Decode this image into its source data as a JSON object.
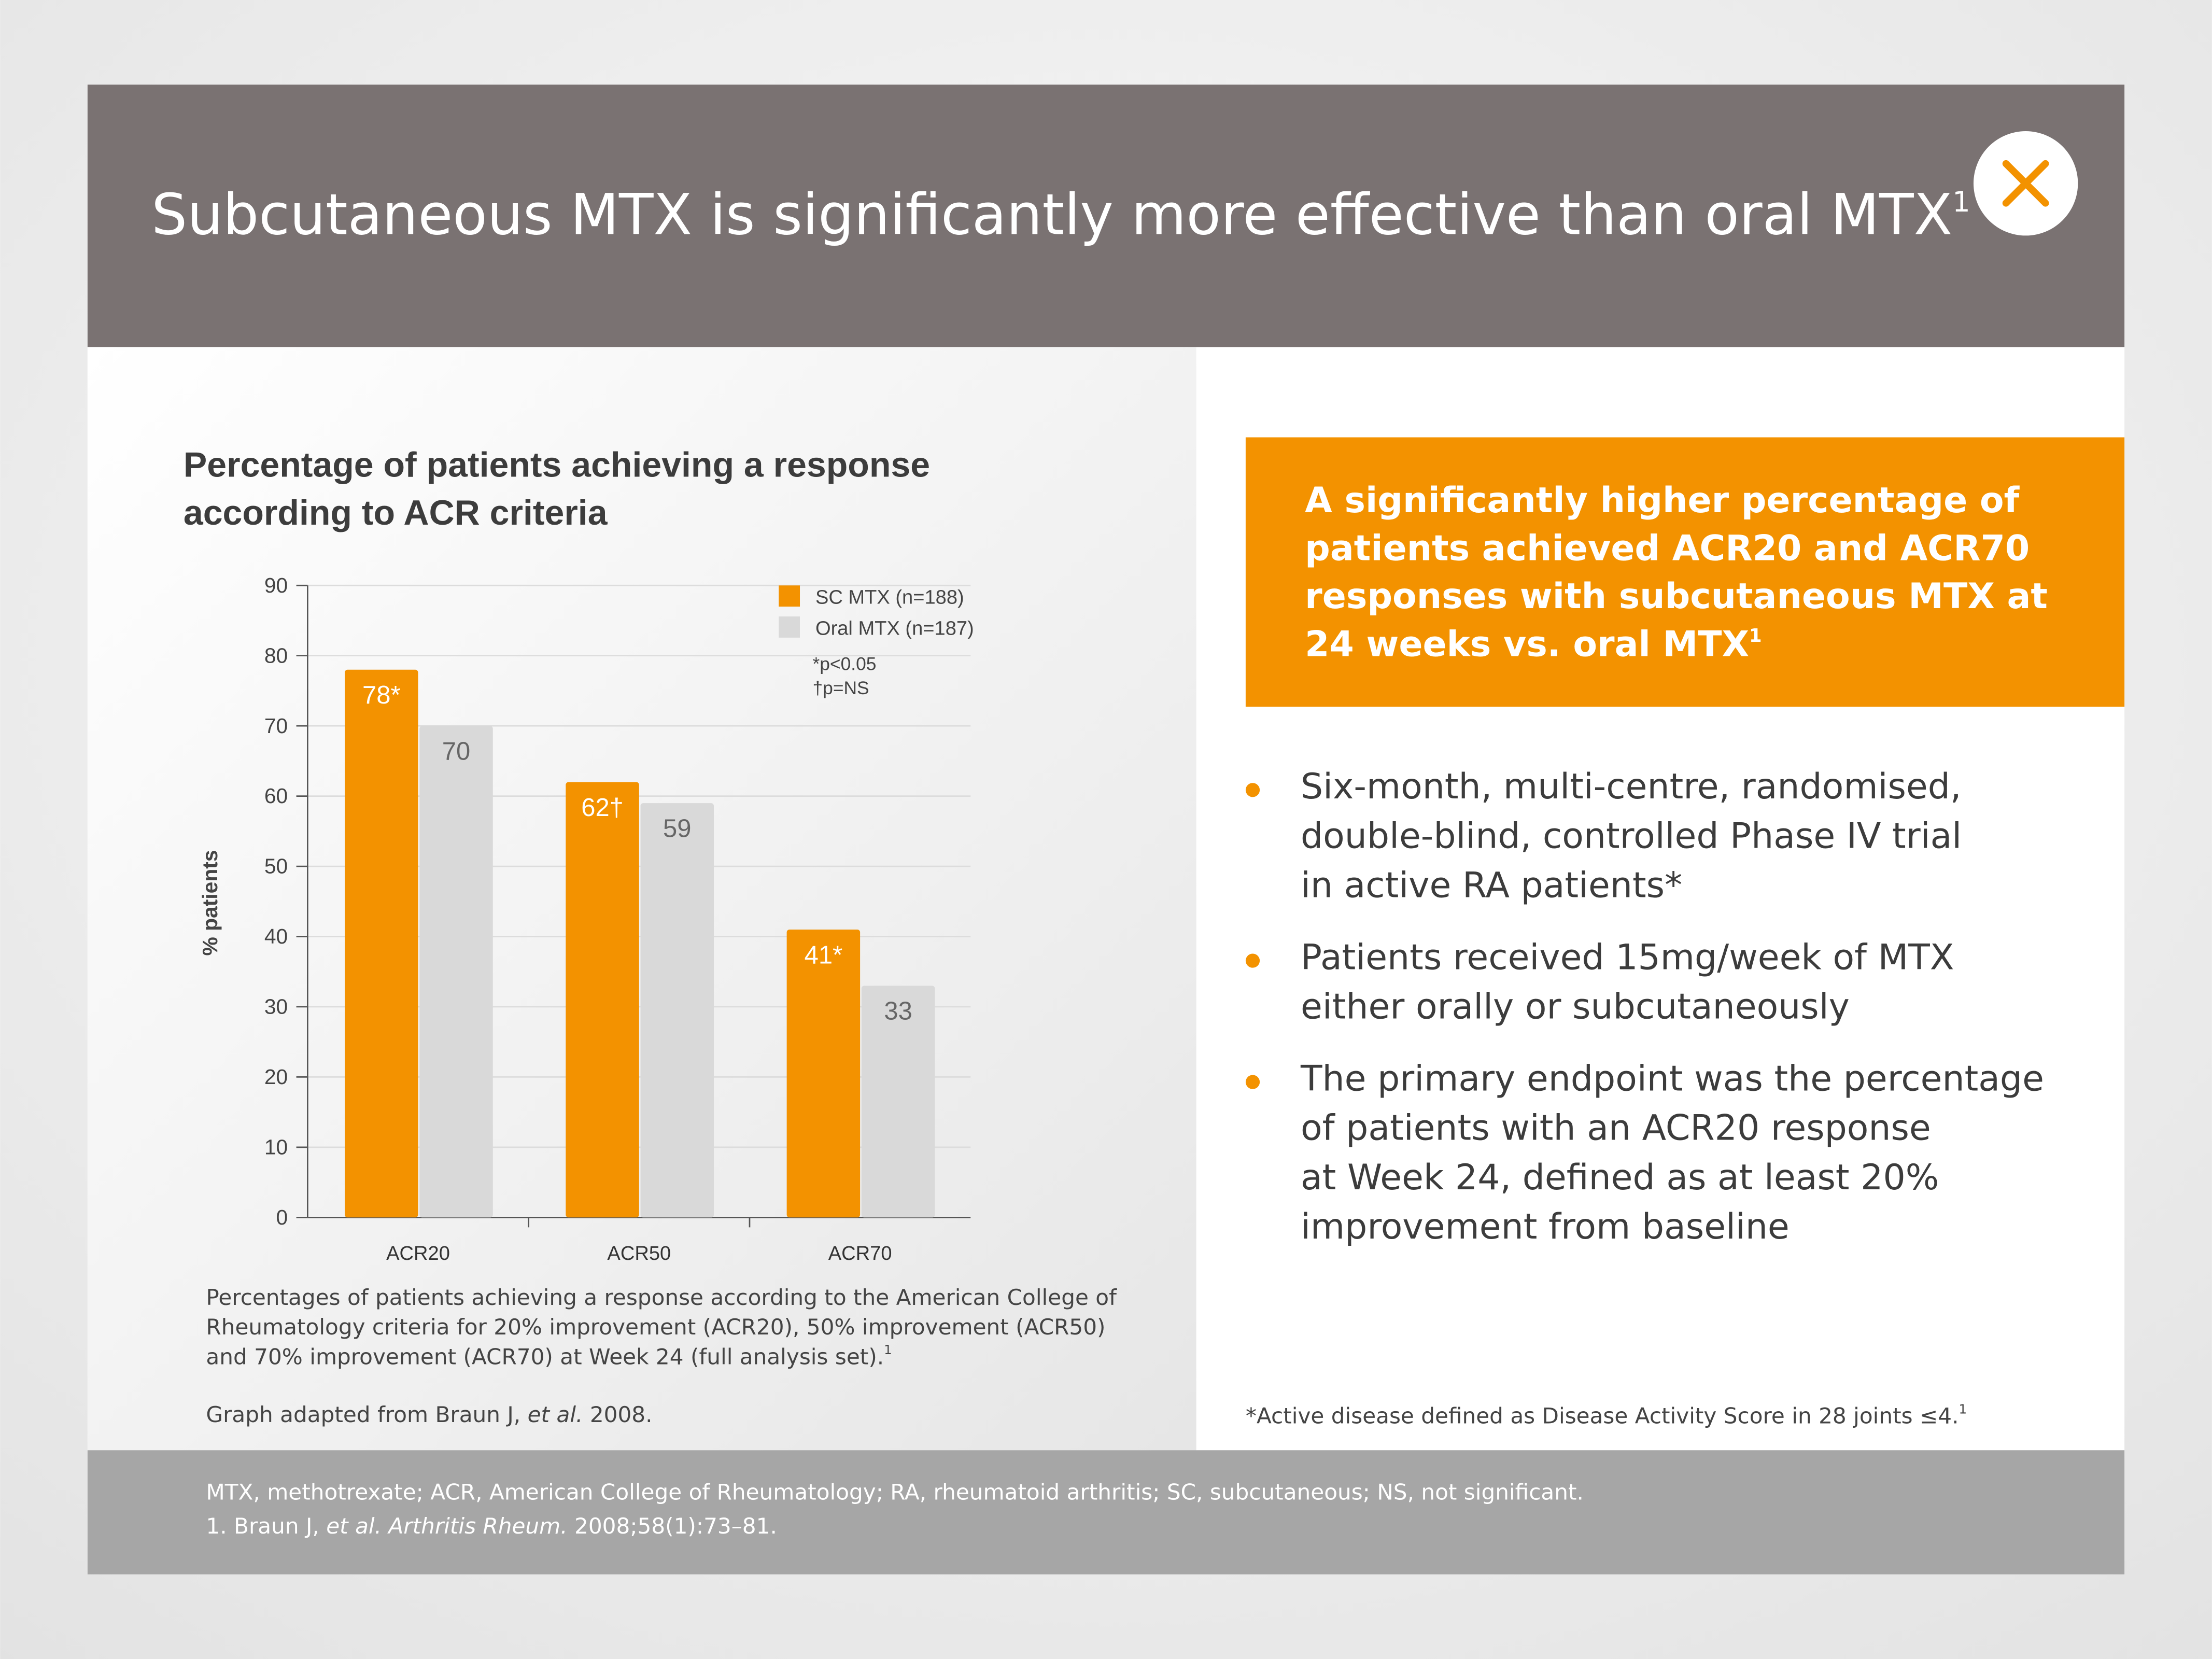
{
  "header": {
    "title": "Subcutaneous MTX is significantly more effective than oral MTX",
    "title_ref": "1"
  },
  "chart_data": {
    "type": "bar",
    "title": [
      "Percentage of patients achieving a response",
      "according to ACR criteria"
    ],
    "y_label": "% patients",
    "categories": [
      "ACR20",
      "ACR50",
      "ACR70"
    ],
    "series": [
      {
        "name": "SC MTX (n=188)",
        "color": "#f39200",
        "values": [
          78,
          62,
          41
        ],
        "value_labels": [
          "78*",
          "62†",
          "41*"
        ]
      },
      {
        "name": "Oral MTX (n=187)",
        "color": "#d9d9d9",
        "values": [
          70,
          59,
          33
        ]
      }
    ],
    "legend_notes": [
      "*p<0.05",
      "†p=NS"
    ],
    "ylim": [
      0,
      90
    ],
    "yticks": [
      0,
      10,
      20,
      30,
      40,
      50,
      60,
      70,
      80,
      90
    ],
    "grid": true
  },
  "caption": {
    "lines": [
      "Percentages of patients achieving a response according to the American College of",
      "Rheumatology criteria for 20% improvement (ACR20), 50% improvement (ACR50)",
      "and 70% improvement (ACR70) at Week 24 (full analysis set)."
    ],
    "ref": "1",
    "source": [
      "Graph adapted from Braun J, ",
      "et al.",
      " 2008."
    ]
  },
  "highlight": {
    "lines": [
      "A significantly higher percentage of",
      "patients achieved ACR20 and ACR70",
      "responses with subcutaneous MTX at",
      "24 weeks vs. oral MTX"
    ],
    "ref": "1"
  },
  "bullets": [
    [
      "Six-month, multi-centre, randomised,",
      "double-blind, controlled Phase IV trial",
      "in active RA patients*"
    ],
    [
      "Patients received 15mg/week of MTX",
      "either orally or subcutaneously"
    ],
    [
      "The primary endpoint was the percentage",
      "of patients with an ACR20 response",
      "at Week 24, defined as at least 20%",
      "improvement from baseline"
    ]
  ],
  "footnote": {
    "text": "*Active disease defined as Disease Activity Score in 28 joints ≤4.",
    "ref": "1"
  },
  "footer": {
    "abbreviations": "MTX, methotrexate; ACR, American College of Rheumatology; RA, rheumatoid arthritis; SC, subcutaneous; NS, not significant.",
    "reference": [
      "1. Braun J, ",
      "et al. Arthritis Rheum.",
      " 2008;58(1):73–81."
    ]
  }
}
